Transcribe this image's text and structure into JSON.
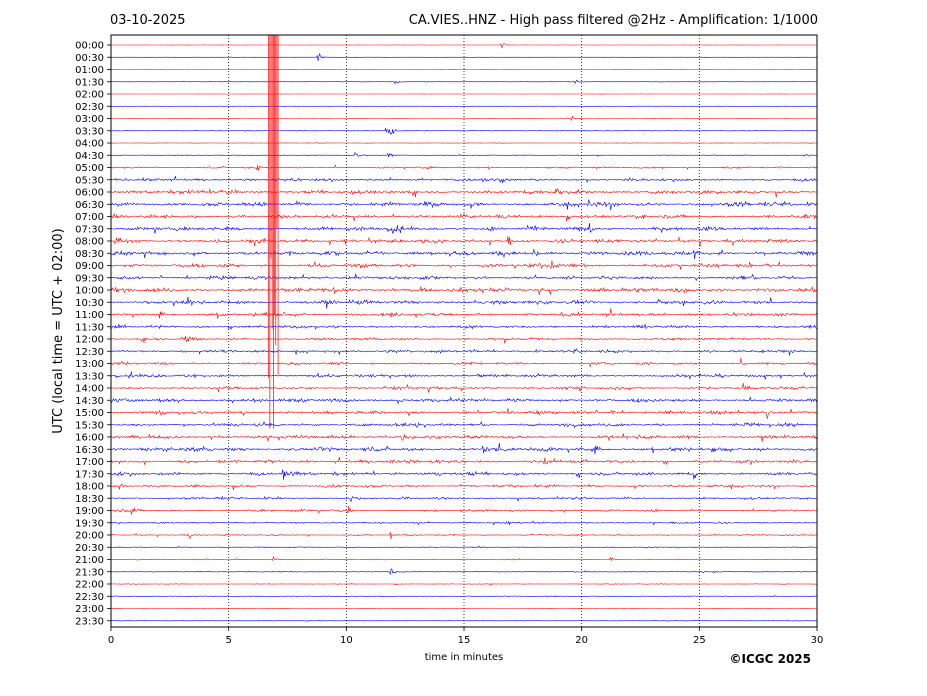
{
  "chart_data": {
    "type": "line",
    "title_left": "03-10-2025",
    "title_right": "CA.VIES..HNZ - High pass filtered @2Hz - Amplification: 1/1000",
    "xlabel": "time in minutes",
    "ylabel": "UTC (local time = UTC + 02:00)",
    "copyright": "©ICGC 2025",
    "xlim": [
      0,
      30
    ],
    "x_ticks": [
      0,
      5,
      10,
      15,
      20,
      25,
      30
    ],
    "grid": "vertical-dotted",
    "colors": {
      "even_row": "#ff0000",
      "odd_row": "#0000ff"
    },
    "rows": [
      "00:00",
      "00:30",
      "01:00",
      "01:30",
      "02:00",
      "02:30",
      "03:00",
      "03:30",
      "04:00",
      "04:30",
      "05:00",
      "05:30",
      "06:00",
      "06:30",
      "07:00",
      "07:30",
      "08:00",
      "08:30",
      "09:00",
      "09:30",
      "10:00",
      "10:30",
      "11:00",
      "11:30",
      "12:00",
      "12:30",
      "13:00",
      "13:30",
      "14:00",
      "14:30",
      "15:00",
      "15:30",
      "16:00",
      "16:30",
      "17:00",
      "17:30",
      "18:00",
      "18:30",
      "19:00",
      "19:30",
      "20:00",
      "20:30",
      "21:00",
      "21:30",
      "22:00",
      "22:30",
      "23:00",
      "23:30"
    ],
    "noise_level": [
      0.2,
      0.2,
      0.2,
      0.3,
      0.2,
      0.2,
      0.3,
      0.5,
      0.4,
      0.6,
      1.4,
      2.2,
      3.0,
      3.2,
      2.8,
      3.2,
      3.0,
      3.2,
      3.0,
      2.8,
      3.2,
      3.0,
      2.6,
      2.2,
      2.0,
      2.2,
      2.0,
      2.4,
      2.2,
      2.8,
      2.6,
      2.6,
      2.6,
      3.2,
      2.6,
      2.6,
      2.0,
      1.8,
      1.8,
      1.3,
      1.0,
      0.8,
      0.7,
      0.7,
      0.5,
      0.5,
      0.3,
      0.3
    ],
    "events": [
      {
        "row": 0,
        "t": 16.6,
        "amp": 6
      },
      {
        "row": 1,
        "t": 8.8,
        "amp": 7
      },
      {
        "row": 3,
        "t": 12.1,
        "amp": 4
      },
      {
        "row": 3,
        "t": 19.7,
        "amp": 5
      },
      {
        "row": 6,
        "t": 19.6,
        "amp": 4
      },
      {
        "row": 7,
        "t": 11.7,
        "amp": 10
      },
      {
        "row": 7,
        "t": 11.9,
        "amp": 8
      },
      {
        "row": 9,
        "t": 10.4,
        "amp": 5
      },
      {
        "row": 9,
        "t": 11.8,
        "amp": 7
      },
      {
        "row": 9,
        "t": 29.5,
        "amp": 5
      },
      {
        "row": 10,
        "t": 6.2,
        "amp": 7
      },
      {
        "row": 11,
        "t": 15.8,
        "amp": 7
      },
      {
        "row": 12,
        "t": 18.9,
        "amp": 9
      },
      {
        "row": 13,
        "t": 20.3,
        "amp": 9
      },
      {
        "row": 14,
        "t": 19.4,
        "amp": 8
      },
      {
        "row": 15,
        "t": 12.0,
        "amp": 9
      },
      {
        "row": 15,
        "t": 20.3,
        "amp": 9
      },
      {
        "row": 16,
        "t": 0.2,
        "amp": 8
      },
      {
        "row": 16,
        "t": 16.9,
        "amp": 8
      },
      {
        "row": 17,
        "t": 18.0,
        "amp": 8
      },
      {
        "row": 17,
        "t": 24.8,
        "amp": 8
      },
      {
        "row": 18,
        "t": 18.7,
        "amp": 9
      },
      {
        "row": 18,
        "t": 27.9,
        "amp": 7
      },
      {
        "row": 20,
        "t": 12.0,
        "amp": 7
      },
      {
        "row": 21,
        "t": 24.3,
        "amp": 6
      },
      {
        "row": 22,
        "t": 2.1,
        "amp": 8
      },
      {
        "row": 22,
        "t": 7.3,
        "amp": 7
      },
      {
        "row": 24,
        "t": 3.2,
        "amp": 8
      },
      {
        "row": 25,
        "t": 19.7,
        "amp": 6
      },
      {
        "row": 25,
        "t": 27.6,
        "amp": 7
      },
      {
        "row": 26,
        "t": 26.8,
        "amp": 7
      },
      {
        "row": 27,
        "t": 0.9,
        "amp": 6
      },
      {
        "row": 27,
        "t": 15.6,
        "amp": 8
      },
      {
        "row": 28,
        "t": 26.9,
        "amp": 7
      },
      {
        "row": 29,
        "t": 12.2,
        "amp": 8
      },
      {
        "row": 30,
        "t": 2.1,
        "amp": 6
      },
      {
        "row": 30,
        "t": 21.3,
        "amp": 7
      },
      {
        "row": 30,
        "t": 27.9,
        "amp": 8
      },
      {
        "row": 31,
        "t": 13.0,
        "amp": 6
      },
      {
        "row": 32,
        "t": 12.4,
        "amp": 6
      },
      {
        "row": 33,
        "t": 15.8,
        "amp": 8
      },
      {
        "row": 33,
        "t": 20.6,
        "amp": 9
      },
      {
        "row": 34,
        "t": 18.4,
        "amp": 6
      },
      {
        "row": 35,
        "t": 7.3,
        "amp": 7
      },
      {
        "row": 35,
        "t": 24.8,
        "amp": 8
      },
      {
        "row": 36,
        "t": 0.4,
        "amp": 6
      },
      {
        "row": 37,
        "t": 10.2,
        "amp": 6
      },
      {
        "row": 38,
        "t": 0.9,
        "amp": 8
      },
      {
        "row": 38,
        "t": 10.1,
        "amp": 6
      },
      {
        "row": 40,
        "t": 3.3,
        "amp": 7
      },
      {
        "row": 40,
        "t": 11.9,
        "amp": 9
      },
      {
        "row": 42,
        "t": 6.9,
        "amp": 6
      },
      {
        "row": 42,
        "t": 21.2,
        "amp": 7
      },
      {
        "row": 43,
        "t": 11.9,
        "amp": 6
      },
      {
        "row": 44,
        "t": 12.1,
        "amp": 4
      }
    ],
    "large_event": {
      "t_start": 6.7,
      "t_end": 7.1,
      "row_start": 0,
      "row_end": 31
    }
  }
}
